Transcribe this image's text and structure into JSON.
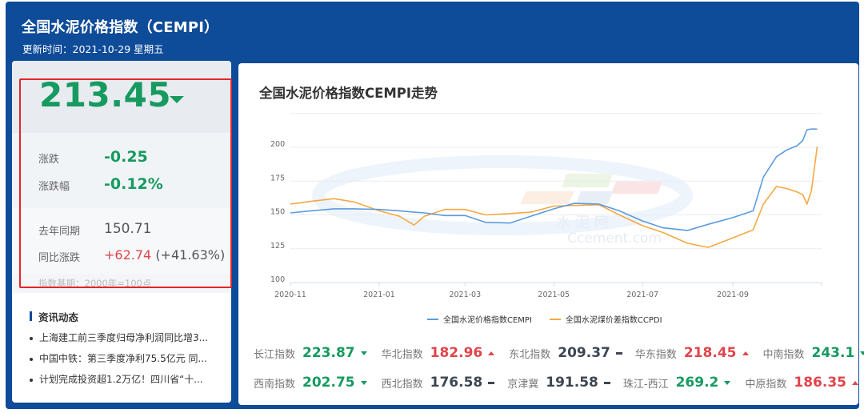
{
  "header": {
    "title": "全国水泥价格指数（CEMPI）",
    "update_time": "更新时间：2021-10-29 星期五"
  },
  "summary": {
    "index_value": "213.45",
    "direction": "down",
    "change_label": "涨跌",
    "change_value": "-0.25",
    "change_pct_label": "涨跌幅",
    "change_pct_value": "-0.12%",
    "last_year_label": "去年同期",
    "last_year_value": "150.71",
    "yoy_label": "同比涨跌",
    "yoy_value": "+62.74",
    "yoy_pct_value": "(+41.63%)",
    "base_note": "指数基期：2000年=100点"
  },
  "news": {
    "title": "资讯动态",
    "items": [
      {
        "text": "上海建工前三季度归母净利润同比增3..."
      },
      {
        "text": "中国中铁：第三季度净利75.5亿元 同..."
      },
      {
        "text": "计划完成投资超1.2万亿！四川省“十..."
      }
    ]
  },
  "chart": {
    "title": "全国水泥价格指数CEMPI走势",
    "watermark_cn": "水 泥 网",
    "watermark_en": "Ccement.com"
  },
  "chart_data": {
    "type": "line",
    "title": "全国水泥价格指数CEMPI走势",
    "xlabel": "",
    "ylabel": "",
    "ylim": [
      100,
      225
    ],
    "yticks": [
      100,
      125,
      150,
      175,
      200
    ],
    "xticks": [
      "2020-11",
      "2021-01",
      "2021-03",
      "2021-05",
      "2021-07",
      "2021-09"
    ],
    "grid": true,
    "legend_position": "bottom",
    "x": [
      "2020-11-01",
      "2020-11-15",
      "2020-12-01",
      "2020-12-15",
      "2021-01-01",
      "2021-01-15",
      "2021-01-25",
      "2021-02-01",
      "2021-02-15",
      "2021-03-01",
      "2021-03-15",
      "2021-04-01",
      "2021-04-15",
      "2021-05-01",
      "2021-05-15",
      "2021-06-01",
      "2021-06-15",
      "2021-07-01",
      "2021-07-15",
      "2021-08-01",
      "2021-08-15",
      "2021-09-01",
      "2021-09-15",
      "2021-09-22",
      "2021-10-01",
      "2021-10-08",
      "2021-10-15",
      "2021-10-19",
      "2021-10-22",
      "2021-10-25",
      "2021-10-29"
    ],
    "series": [
      {
        "name": "全国水泥价格指数CEMPI",
        "color": "#5b9bdf",
        "values": [
          151.5,
          153,
          154.5,
          154.5,
          154,
          153,
          152,
          151.5,
          149.5,
          149.5,
          144.5,
          144,
          149,
          154.5,
          158.5,
          158,
          153,
          145.5,
          140.5,
          138.5,
          143,
          148,
          153,
          178,
          193,
          198,
          201,
          205,
          213,
          213.5,
          213.45
        ]
      },
      {
        "name": "全国水泥煤价差指数CCPDI",
        "color": "#f5a843",
        "values": [
          158,
          160,
          162,
          159.5,
          153,
          149,
          142.5,
          149,
          154,
          154,
          150,
          151,
          152,
          156.5,
          157,
          157.5,
          150,
          142,
          137,
          129,
          126,
          133,
          139,
          158,
          171,
          169.5,
          167,
          165,
          158,
          168,
          200.5
        ]
      }
    ]
  },
  "legend": {
    "items": [
      {
        "label": "全国水泥价格指数CEMPI",
        "color": "#5b9bdf"
      },
      {
        "label": "全国水泥煤价差指数CCPDI",
        "color": "#f5a843"
      }
    ]
  },
  "regions": {
    "row1": [
      {
        "name": "长江指数",
        "value": "223.87",
        "trend": "down"
      },
      {
        "name": "华北指数",
        "value": "182.96",
        "trend": "up"
      },
      {
        "name": "东北指数",
        "value": "209.37",
        "trend": "flat"
      },
      {
        "name": "华东指数",
        "value": "218.45",
        "trend": "up"
      },
      {
        "name": "中南指数",
        "value": "243.1",
        "trend": "down"
      }
    ],
    "row2": [
      {
        "name": "西南指数",
        "value": "202.75",
        "trend": "down"
      },
      {
        "name": "西北指数",
        "value": "176.58",
        "trend": "flat"
      },
      {
        "name": "京津冀",
        "value": "191.58",
        "trend": "flat"
      },
      {
        "name": "珠江-西江",
        "value": "269.2",
        "trend": "down"
      },
      {
        "name": "中原指数",
        "value": "186.35",
        "trend": "up"
      }
    ]
  },
  "colors": {
    "frame_blue": "#0e4b98",
    "down_green": "#169a5f",
    "up_red": "#e0454b",
    "flat_gray": "#3d4652",
    "highlight_red": "#e3262b"
  }
}
